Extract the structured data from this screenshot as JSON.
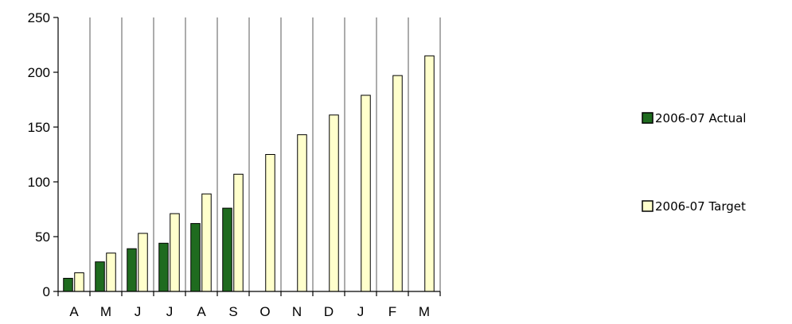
{
  "chart_data": {
    "type": "bar",
    "categories": [
      "A",
      "M",
      "J",
      "J",
      "A",
      "S",
      "O",
      "N",
      "D",
      "J",
      "F",
      "M"
    ],
    "series": [
      {
        "name": "2006-07 Actual",
        "values": [
          12,
          27,
          39,
          44,
          62,
          76,
          null,
          null,
          null,
          null,
          null,
          null
        ],
        "color": "#1f6b1f"
      },
      {
        "name": "2006-07 Target",
        "values": [
          17,
          35,
          53,
          71,
          89,
          107,
          125,
          143,
          161,
          179,
          197,
          215
        ],
        "color": "#ffffcc"
      }
    ],
    "ylim": [
      0,
      250
    ],
    "yticks": [
      0,
      50,
      100,
      150,
      200,
      250
    ],
    "grid": "vertical",
    "legend": "right",
    "title": "",
    "xlabel": "",
    "ylabel": ""
  }
}
